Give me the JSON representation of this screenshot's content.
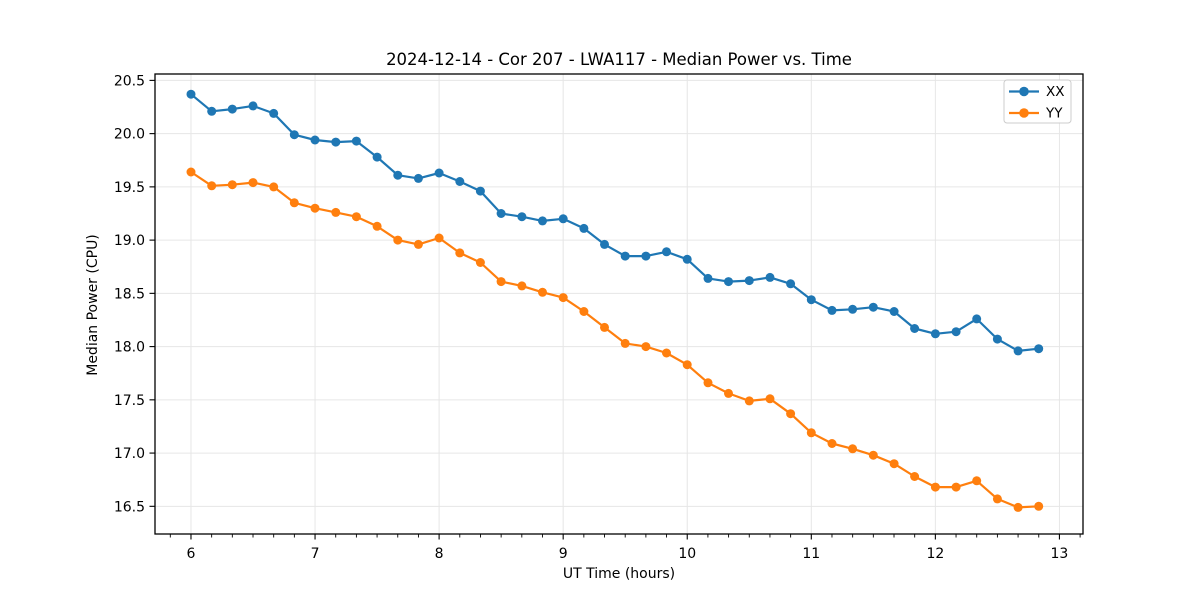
{
  "figure": {
    "background": "#ffffff"
  },
  "chart_data": {
    "type": "line",
    "title": "2024-12-14 - Cor 207 - LWA117 - Median Power vs. Time",
    "xlabel": "UT Time (hours)",
    "ylabel": "Median Power (CPU)",
    "xlim": [
      5.71,
      13.19
    ],
    "ylim": [
      16.24,
      20.56
    ],
    "xtick_values": [
      6,
      7,
      8,
      9,
      10,
      11,
      12,
      13
    ],
    "xtick_labels": [
      "6",
      "7",
      "8",
      "9",
      "10",
      "11",
      "12",
      "13"
    ],
    "ytick_values": [
      16.5,
      17.0,
      17.5,
      18.0,
      18.5,
      19.0,
      19.5,
      20.0,
      20.5
    ],
    "ytick_labels": [
      "16.5",
      "17.0",
      "17.5",
      "18.0",
      "18.5",
      "19.0",
      "19.5",
      "20.0",
      "20.5"
    ],
    "x_minor_ticks_per_hour": 6,
    "grid": true,
    "grid_color": "#e6e6e6",
    "spine_color": "#000000",
    "legend_position": "upper right",
    "x": [
      6.0,
      6.167,
      6.333,
      6.5,
      6.667,
      6.833,
      7.0,
      7.167,
      7.333,
      7.5,
      7.667,
      7.833,
      8.0,
      8.167,
      8.333,
      8.5,
      8.667,
      8.833,
      9.0,
      9.167,
      9.333,
      9.5,
      9.667,
      9.833,
      10.0,
      10.167,
      10.333,
      10.5,
      10.667,
      10.833,
      11.0,
      11.167,
      11.333,
      11.5,
      11.667,
      11.833,
      12.0,
      12.167,
      12.333,
      12.5,
      12.667,
      12.833
    ],
    "series": [
      {
        "name": "XX",
        "color": "#1f77b4",
        "values": [
          20.37,
          20.21,
          20.23,
          20.26,
          20.19,
          19.99,
          19.94,
          19.92,
          19.93,
          19.78,
          19.61,
          19.58,
          19.63,
          19.55,
          19.46,
          19.25,
          19.22,
          19.18,
          19.2,
          19.11,
          18.96,
          18.85,
          18.85,
          18.89,
          18.82,
          18.64,
          18.61,
          18.62,
          18.65,
          18.59,
          18.44,
          18.34,
          18.35,
          18.37,
          18.33,
          18.17,
          18.12,
          18.14,
          18.26,
          18.07,
          17.96,
          17.98
        ]
      },
      {
        "name": "YY",
        "color": "#ff7f0e",
        "values": [
          19.64,
          19.51,
          19.52,
          19.54,
          19.5,
          19.35,
          19.3,
          19.26,
          19.22,
          19.13,
          19.0,
          18.96,
          19.02,
          18.88,
          18.79,
          18.61,
          18.57,
          18.51,
          18.46,
          18.33,
          18.18,
          18.03,
          18.0,
          17.94,
          17.83,
          17.66,
          17.56,
          17.49,
          17.51,
          17.37,
          17.19,
          17.09,
          17.04,
          16.98,
          16.9,
          16.78,
          16.68,
          16.68,
          16.74,
          16.57,
          16.49,
          16.5
        ]
      }
    ]
  }
}
